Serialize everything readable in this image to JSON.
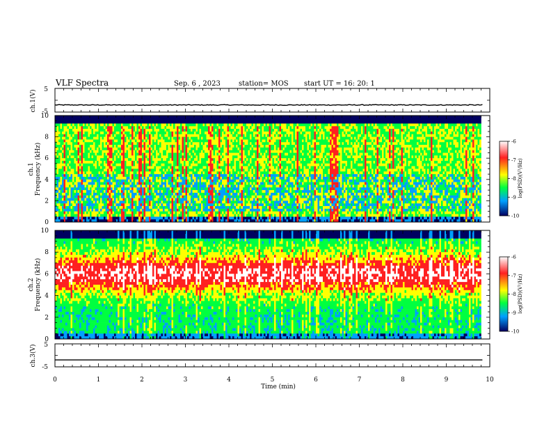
{
  "header": {
    "title": "VLF Spectra",
    "date": "Sep. 6 , 2023",
    "station": "station= MOS",
    "start": "start  UT =   16: 20: 1"
  },
  "chart_data": [
    {
      "type": "line",
      "title": "",
      "ylabel": "ch.1(V)",
      "ylim": [
        -5,
        5
      ],
      "yticks": [
        "5",
        "-5"
      ],
      "x": [
        0,
        9.83
      ],
      "series": [
        {
          "values": [
            -2,
            -2
          ]
        }
      ]
    },
    {
      "type": "heatmap",
      "ylabel": "ch.1\nFrequency (kHz)",
      "ylabel_line1": "ch.1",
      "ylabel_line2": "Frequency (kHz)",
      "ylim": [
        0,
        10
      ],
      "yticks": [
        "0",
        "2",
        "4",
        "6",
        "8",
        "10"
      ],
      "xlim": [
        0,
        10
      ],
      "colorbar": {
        "label": "log(PSD)(V²/Hz)",
        "range": [
          -10,
          -6
        ],
        "ticks": [
          "-6",
          "-7",
          "-8",
          "-9",
          "-10"
        ],
        "colors": [
          "#ffffff",
          "#ff2020",
          "#ffff00",
          "#00ff40",
          "#00a0ff",
          "#000060"
        ]
      }
    },
    {
      "type": "heatmap",
      "ylabel": "ch.2\nFrequency (kHz)",
      "ylabel_line1": "ch.2",
      "ylabel_line2": "Frequency (kHz)",
      "ylim": [
        0,
        10
      ],
      "yticks": [
        "0",
        "2",
        "4",
        "6",
        "8",
        "10"
      ],
      "xlim": [
        0,
        10
      ],
      "colorbar": {
        "label": "log(PSD)(V²/Hz)",
        "range": [
          -10,
          -6
        ],
        "ticks": [
          "-6",
          "-7",
          "-8",
          "-9",
          "-10"
        ],
        "colors": [
          "#ffffff",
          "#ff2020",
          "#ffff00",
          "#00ff40",
          "#00a0ff",
          "#000060"
        ]
      }
    },
    {
      "type": "line",
      "ylabel": "ch.3(V)",
      "ylim": [
        -5,
        5
      ],
      "yticks": [
        "5",
        "-5"
      ],
      "x": [
        0,
        9.83
      ],
      "series": [
        {
          "values": [
            -2,
            -2
          ]
        }
      ]
    }
  ],
  "xaxis": {
    "label": "Time  (min)",
    "ticks": [
      "0",
      "1",
      "2",
      "3",
      "4",
      "5",
      "6",
      "7",
      "8",
      "9",
      "10"
    ],
    "range": [
      0,
      10
    ]
  }
}
